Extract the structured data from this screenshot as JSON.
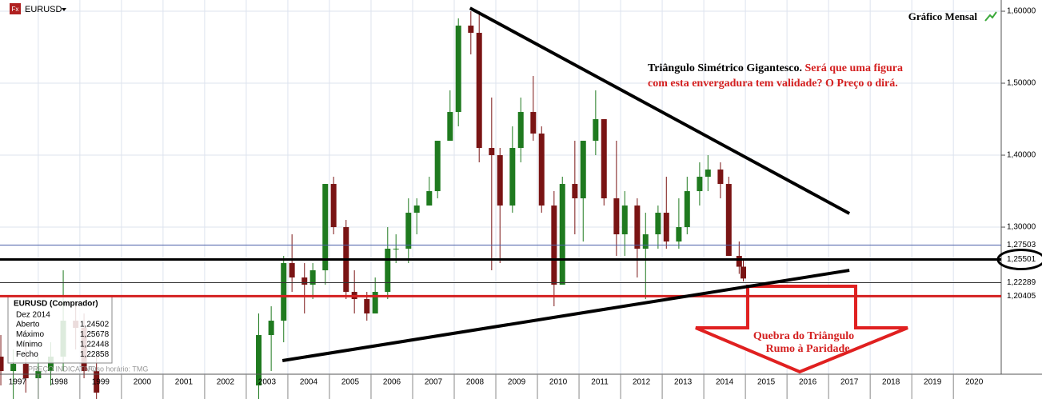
{
  "header": {
    "symbol": "EURUSD",
    "chart_label": "Gráfico Mensal"
  },
  "chart_data": {
    "type": "candlestick",
    "xlim": [
      1997.08,
      2021.15
    ],
    "ylim": [
      1.0956,
      1.6156
    ],
    "xticks": [
      1997,
      1998,
      1999,
      2000,
      2001,
      2002,
      2003,
      2004,
      2005,
      2006,
      2007,
      2008,
      2009,
      2010,
      2011,
      2012,
      2013,
      2014,
      2015,
      2016,
      2017,
      2018,
      2019,
      2020
    ],
    "yticks": [
      {
        "value": 1.3,
        "label": "1,30000"
      },
      {
        "value": 1.4,
        "label": "1,40000"
      },
      {
        "value": 1.5,
        "label": "1,50000"
      },
      {
        "value": 1.6,
        "label": "1,60000"
      }
    ],
    "grid": true,
    "up_color": "#1f7a1f",
    "down_color": "#7a1414",
    "x": [
      1997.1,
      1997.4,
      1997.7,
      1998.0,
      1998.3,
      1998.6,
      1998.9,
      1999.1,
      1999.4,
      2003.3,
      2003.6,
      2003.9,
      2004.1,
      2004.4,
      2004.6,
      2004.9,
      2005.1,
      2005.4,
      2005.6,
      2005.9,
      2006.1,
      2006.4,
      2006.6,
      2006.9,
      2007.1,
      2007.4,
      2007.6,
      2007.9,
      2008.1,
      2008.4,
      2008.6,
      2008.9,
      2009.1,
      2009.4,
      2009.6,
      2009.9,
      2010.1,
      2010.4,
      2010.6,
      2010.9,
      2011.1,
      2011.4,
      2011.6,
      2011.9,
      2012.1,
      2012.4,
      2012.6,
      2012.9,
      2013.1,
      2013.4,
      2013.6,
      2013.9,
      2014.1,
      2014.4,
      2014.6,
      2014.85,
      2014.95
    ],
    "open": [
      1.12,
      1.1,
      1.11,
      1.09,
      1.1,
      1.12,
      1.17,
      1.16,
      1.1,
      1.08,
      1.15,
      1.17,
      1.25,
      1.23,
      1.22,
      1.24,
      1.36,
      1.3,
      1.21,
      1.2,
      1.18,
      1.21,
      1.27,
      1.27,
      1.32,
      1.33,
      1.35,
      1.42,
      1.46,
      1.58,
      1.57,
      1.41,
      1.4,
      1.33,
      1.41,
      1.46,
      1.43,
      1.33,
      1.22,
      1.36,
      1.34,
      1.42,
      1.45,
      1.34,
      1.29,
      1.33,
      1.27,
      1.29,
      1.32,
      1.28,
      1.3,
      1.35,
      1.37,
      1.38,
      1.36,
      1.26,
      1.24502
    ],
    "high": [
      1.15,
      1.13,
      1.14,
      1.12,
      1.14,
      1.24,
      1.19,
      1.18,
      1.12,
      1.18,
      1.19,
      1.26,
      1.29,
      1.25,
      1.25,
      1.36,
      1.37,
      1.31,
      1.24,
      1.21,
      1.23,
      1.3,
      1.29,
      1.34,
      1.34,
      1.37,
      1.42,
      1.49,
      1.59,
      1.6,
      1.6,
      1.48,
      1.41,
      1.44,
      1.48,
      1.51,
      1.44,
      1.35,
      1.37,
      1.42,
      1.42,
      1.49,
      1.45,
      1.42,
      1.35,
      1.34,
      1.32,
      1.33,
      1.37,
      1.34,
      1.37,
      1.39,
      1.4,
      1.39,
      1.37,
      1.28,
      1.25678
    ],
    "low": [
      1.08,
      1.06,
      1.07,
      1.06,
      1.08,
      1.1,
      1.13,
      1.09,
      1.05,
      1.06,
      1.1,
      1.14,
      1.21,
      1.18,
      1.2,
      1.22,
      1.29,
      1.2,
      1.18,
      1.17,
      1.18,
      1.2,
      1.25,
      1.25,
      1.29,
      1.33,
      1.34,
      1.42,
      1.44,
      1.54,
      1.39,
      1.24,
      1.25,
      1.32,
      1.39,
      1.42,
      1.32,
      1.19,
      1.22,
      1.29,
      1.28,
      1.4,
      1.33,
      1.26,
      1.26,
      1.23,
      1.2,
      1.27,
      1.27,
      1.27,
      1.29,
      1.33,
      1.35,
      1.34,
      1.26,
      1.235,
      1.22448
    ],
    "close": [
      1.1,
      1.11,
      1.09,
      1.1,
      1.12,
      1.17,
      1.16,
      1.1,
      1.07,
      1.15,
      1.17,
      1.25,
      1.23,
      1.22,
      1.24,
      1.36,
      1.3,
      1.21,
      1.2,
      1.18,
      1.21,
      1.27,
      1.27,
      1.32,
      1.33,
      1.35,
      1.42,
      1.46,
      1.58,
      1.57,
      1.41,
      1.4,
      1.33,
      1.41,
      1.46,
      1.43,
      1.33,
      1.22,
      1.36,
      1.34,
      1.42,
      1.45,
      1.34,
      1.29,
      1.33,
      1.27,
      1.29,
      1.32,
      1.28,
      1.3,
      1.35,
      1.37,
      1.38,
      1.36,
      1.26,
      1.245,
      1.22858
    ],
    "levels": [
      {
        "value": 1.27503,
        "label": "1,27503",
        "color": "#4a5fa8"
      },
      {
        "value": 1.25501,
        "label": "1,25501",
        "color": "#000000",
        "circled": true
      },
      {
        "value": 1.22289,
        "label": "1,22289",
        "color": "#333333"
      },
      {
        "value": 1.20405,
        "label": "1,20405",
        "color": "#d42020"
      }
    ],
    "trendlines": [
      {
        "x": [
          2008.38,
          2017.5
        ],
        "y": [
          1.6044,
          1.3189
        ]
      },
      {
        "x": [
          2003.87,
          2017.5
        ],
        "y": [
          1.1145,
          1.24
        ]
      }
    ],
    "annotation": {
      "black": "Triângulo Simétrico Gigantesco.",
      "red": [
        "Será que uma figura",
        "com esta envergadura tem validade? O Preço o dirá."
      ]
    },
    "arrow_text": [
      "Quebra do Triângulo",
      "Rumo à Paridade"
    ],
    "watermark": [
      "PREÇO INDICATIVO",
      "Fuso horário: TMG"
    ]
  },
  "info_box": {
    "title": "EURUSD (Comprador)",
    "period": "Dez 2014",
    "rows": [
      [
        "Aberto",
        "1,24502"
      ],
      [
        "Máximo",
        "1,25678"
      ],
      [
        "Mínimo",
        "1,22448"
      ],
      [
        "Fecho",
        "1,22858"
      ]
    ]
  }
}
